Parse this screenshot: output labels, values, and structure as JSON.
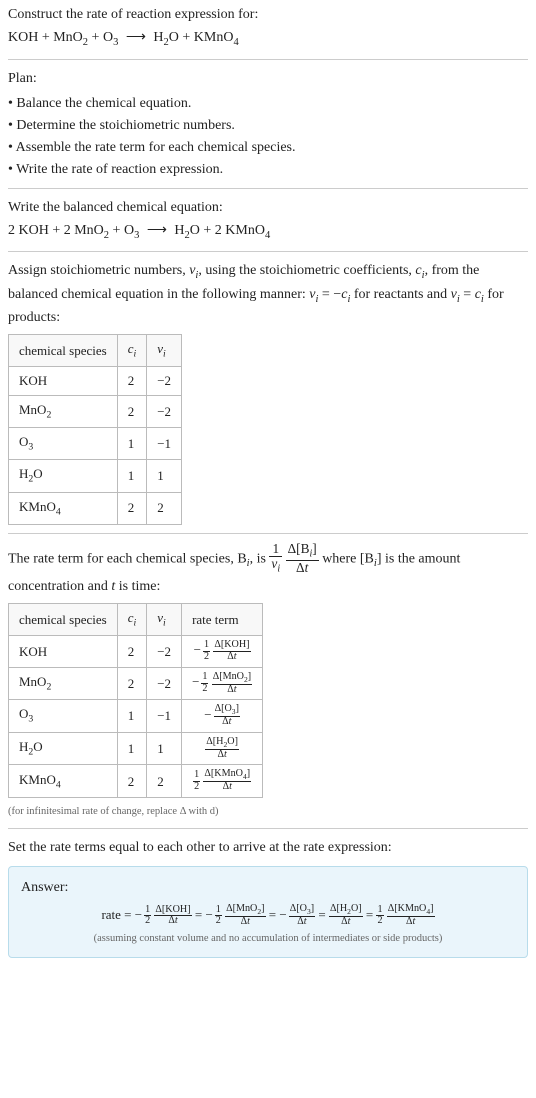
{
  "title": "Construct the rate of reaction expression for:",
  "unbalanced": {
    "lhs": [
      "KOH",
      "MnO_2",
      "O_3"
    ],
    "rhs": [
      "H_2O",
      "KMnO_4"
    ]
  },
  "plan_label": "Plan:",
  "plan": [
    "Balance the chemical equation.",
    "Determine the stoichiometric numbers.",
    "Assemble the rate term for each chemical species.",
    "Write the rate of reaction expression."
  ],
  "balanced_label": "Write the balanced chemical equation:",
  "balanced": {
    "lhs": [
      {
        "c": "2",
        "sp": "KOH"
      },
      {
        "c": "2",
        "sp": "MnO_2"
      },
      {
        "c": "",
        "sp": "O_3"
      }
    ],
    "rhs": [
      {
        "c": "",
        "sp": "H_2O"
      },
      {
        "c": "2",
        "sp": "KMnO_4"
      }
    ]
  },
  "stoich_intro1": "Assign stoichiometric numbers, ",
  "stoich_intro2": ", using the stoichiometric coefficients, ",
  "stoich_intro3": ", from the balanced chemical equation in the following manner: ",
  "stoich_intro4": " for reactants and ",
  "stoich_intro5": " for products:",
  "table1_headers": [
    "chemical species",
    "c_i",
    "ν_i"
  ],
  "table1_rows": [
    {
      "sp": "KOH",
      "c": "2",
      "v": "-2"
    },
    {
      "sp": "MnO_2",
      "c": "2",
      "v": "-2"
    },
    {
      "sp": "O_3",
      "c": "1",
      "v": "-1"
    },
    {
      "sp": "H_2O",
      "c": "1",
      "v": "1"
    },
    {
      "sp": "KMnO_4",
      "c": "2",
      "v": "2"
    }
  ],
  "rate_intro1": "The rate term for each chemical species, ",
  "rate_intro2": ", is ",
  "rate_intro3": " where ",
  "rate_intro4": " is the amount concentration and ",
  "rate_intro5": " is time:",
  "table2_headers": [
    "chemical species",
    "c_i",
    "ν_i",
    "rate term"
  ],
  "table2_rows": [
    {
      "sp": "KOH",
      "c": "2",
      "v": "-2",
      "neg": true,
      "coef_num": "1",
      "coef_den": "2",
      "conc": "[KOH]"
    },
    {
      "sp": "MnO_2",
      "c": "2",
      "v": "-2",
      "neg": true,
      "coef_num": "1",
      "coef_den": "2",
      "conc": "[MnO_2]"
    },
    {
      "sp": "O_3",
      "c": "1",
      "v": "-1",
      "neg": true,
      "coef_num": null,
      "coef_den": null,
      "conc": "[O_3]"
    },
    {
      "sp": "H_2O",
      "c": "1",
      "v": "1",
      "neg": false,
      "coef_num": null,
      "coef_den": null,
      "conc": "[H_2O]"
    },
    {
      "sp": "KMnO_4",
      "c": "2",
      "v": "2",
      "neg": false,
      "coef_num": "1",
      "coef_den": "2",
      "conc": "[KMnO_4]"
    }
  ],
  "footnote": "(for infinitesimal rate of change, replace Δ with d)",
  "set_equal": "Set the rate terms equal to each other to arrive at the rate expression:",
  "answer_label": "Answer:",
  "answer_prefix": "rate = ",
  "answer_terms": [
    {
      "neg": true,
      "coef_num": "1",
      "coef_den": "2",
      "conc": "[KOH]"
    },
    {
      "neg": true,
      "coef_num": "1",
      "coef_den": "2",
      "conc": "[MnO_2]"
    },
    {
      "neg": true,
      "coef_num": null,
      "coef_den": null,
      "conc": "[O_3]"
    },
    {
      "neg": false,
      "coef_num": null,
      "coef_den": null,
      "conc": "[H_2O]"
    },
    {
      "neg": false,
      "coef_num": "1",
      "coef_den": "2",
      "conc": "[KMnO_4]"
    }
  ],
  "answer_note": "(assuming constant volume and no accumulation of intermediates or side products)",
  "colors": {
    "answer_bg": "#eaf5fb",
    "answer_border": "#b8dceb",
    "rule": "#ccc",
    "text": "#222"
  }
}
